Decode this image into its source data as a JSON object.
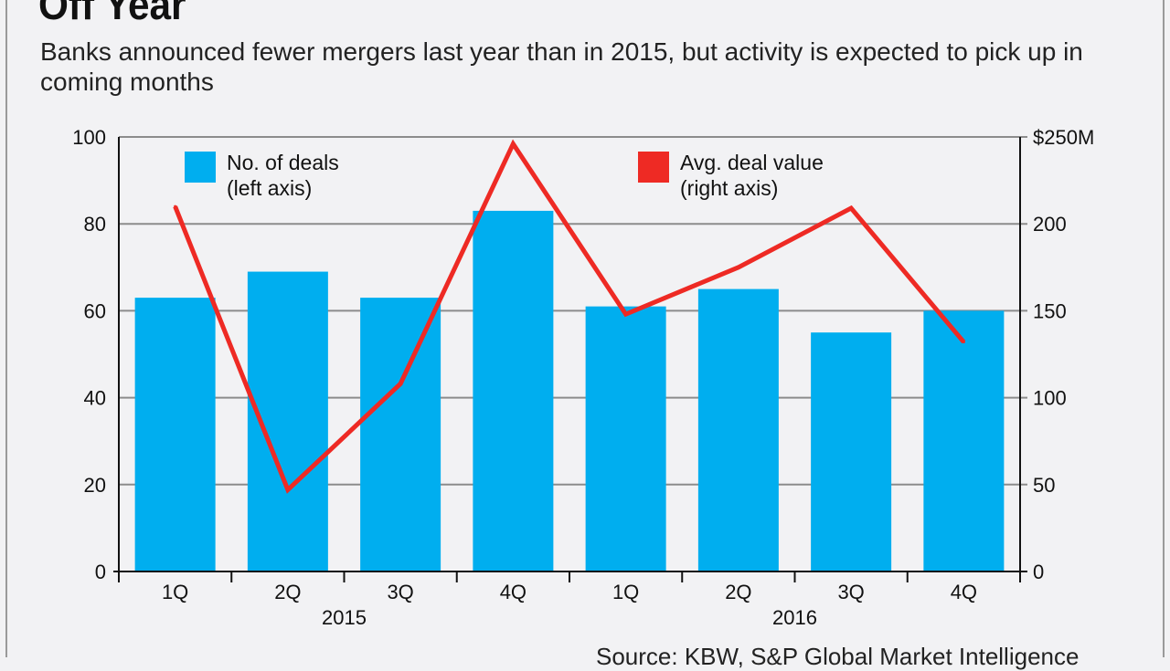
{
  "header": {
    "title": "Off Year",
    "subtitle": "Banks announced fewer mergers last year than in 2015, but activity is expected to pick up in coming months"
  },
  "footer": {
    "source": "Source: KBW, S&P Global Market Intelligence"
  },
  "colors": {
    "bar": "#00aeef",
    "line": "#ee2a24",
    "grid": "#8c8c8c",
    "axis": "#111111"
  },
  "chart_data": {
    "type": "bar",
    "categories": [
      "1Q",
      "2Q",
      "3Q",
      "4Q",
      "1Q",
      "2Q",
      "3Q",
      "4Q"
    ],
    "groups": [
      {
        "label": "2015",
        "from": 0,
        "to": 3
      },
      {
        "label": "2016",
        "from": 4,
        "to": 7
      }
    ],
    "series": [
      {
        "name": "No. of deals",
        "legend": [
          "No. of deals",
          "(left axis)"
        ],
        "type": "bar",
        "axis": "left",
        "values": [
          63,
          69,
          63,
          83,
          61,
          65,
          55,
          60
        ]
      },
      {
        "name": "Avg. deal value",
        "legend": [
          "Avg. deal value",
          "(right axis)"
        ],
        "type": "line",
        "axis": "right",
        "values": [
          210,
          47,
          108,
          246,
          148,
          175,
          209,
          132
        ]
      }
    ],
    "left_axis": {
      "min": 0,
      "max": 100,
      "ticks": [
        "0",
        "20",
        "40",
        "60",
        "80",
        "100"
      ]
    },
    "right_axis": {
      "min": 0,
      "max": 250,
      "ticks": [
        "0",
        "50",
        "100",
        "150",
        "200",
        "$250M"
      ]
    },
    "grid": true
  }
}
